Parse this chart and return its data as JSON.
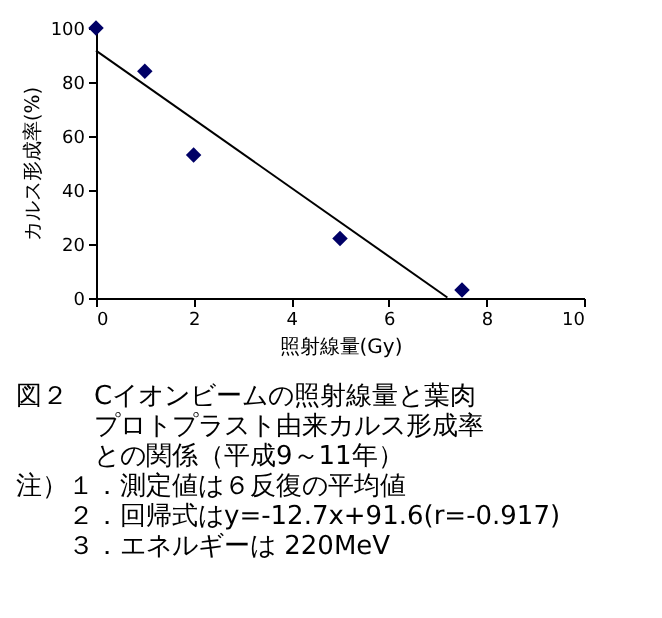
{
  "chart_data": {
    "type": "scatter",
    "xlabel": "照射線量(Gy)",
    "ylabel": "カルス形成率(%)",
    "xlim": [
      0,
      10
    ],
    "xticks": [
      0,
      2,
      4,
      6,
      8,
      10
    ],
    "ylim": [
      0,
      100
    ],
    "yticks": [
      0,
      20,
      40,
      60,
      80,
      100
    ],
    "grid": false,
    "marker": "diamond",
    "series": [
      {
        "color": "#000066",
        "x": [
          0,
          1,
          2,
          5,
          7.5
        ],
        "values": [
          100,
          84,
          53,
          22,
          3
        ]
      },
      {
        "type": "line",
        "color": "#000000",
        "x": [
          0,
          7.2
        ],
        "values": [
          91.6,
          0.2
        ],
        "marker": "none",
        "line_style": "solid"
      }
    ],
    "annotations": [
      "図２　Cイオンビームの照射線量と葉肉",
      "プロトプラスト由来カルス形成率",
      "との関係（平成9～11年）",
      "注）１．測定値は６反復の平均値",
      "２．回帰式はy=-12.7x+91.6(r=-0.917)",
      "３．エネルギーは 220MeV"
    ]
  }
}
